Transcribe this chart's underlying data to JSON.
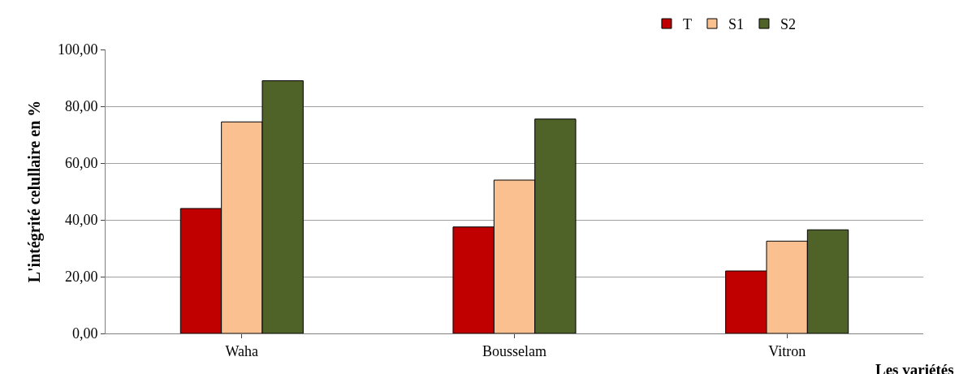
{
  "chart_data": {
    "type": "bar",
    "xlabel": "Les variétés",
    "ylabel": "L'intégrité celullaire en %",
    "categories": [
      "Waha",
      "Bousselam",
      "Vitron"
    ],
    "series": [
      {
        "name": "T",
        "color": "#c00000",
        "values": [
          44,
          37.5,
          22
        ]
      },
      {
        "name": "S1",
        "color": "#fac090",
        "values": [
          74.5,
          54,
          32.5
        ]
      },
      {
        "name": "S2",
        "color": "#4f6228",
        "values": [
          89,
          75.5,
          36.5
        ]
      }
    ],
    "ylim": [
      0,
      100
    ],
    "yticks": [
      {
        "value": 0,
        "label": "0,00"
      },
      {
        "value": 20,
        "label": "20,00"
      },
      {
        "value": 40,
        "label": "40,00"
      },
      {
        "value": 60,
        "label": "60,00"
      },
      {
        "value": 80,
        "label": "80,00"
      },
      {
        "value": 100,
        "label": "100,00"
      }
    ],
    "grid": "y",
    "legend": "top right"
  }
}
